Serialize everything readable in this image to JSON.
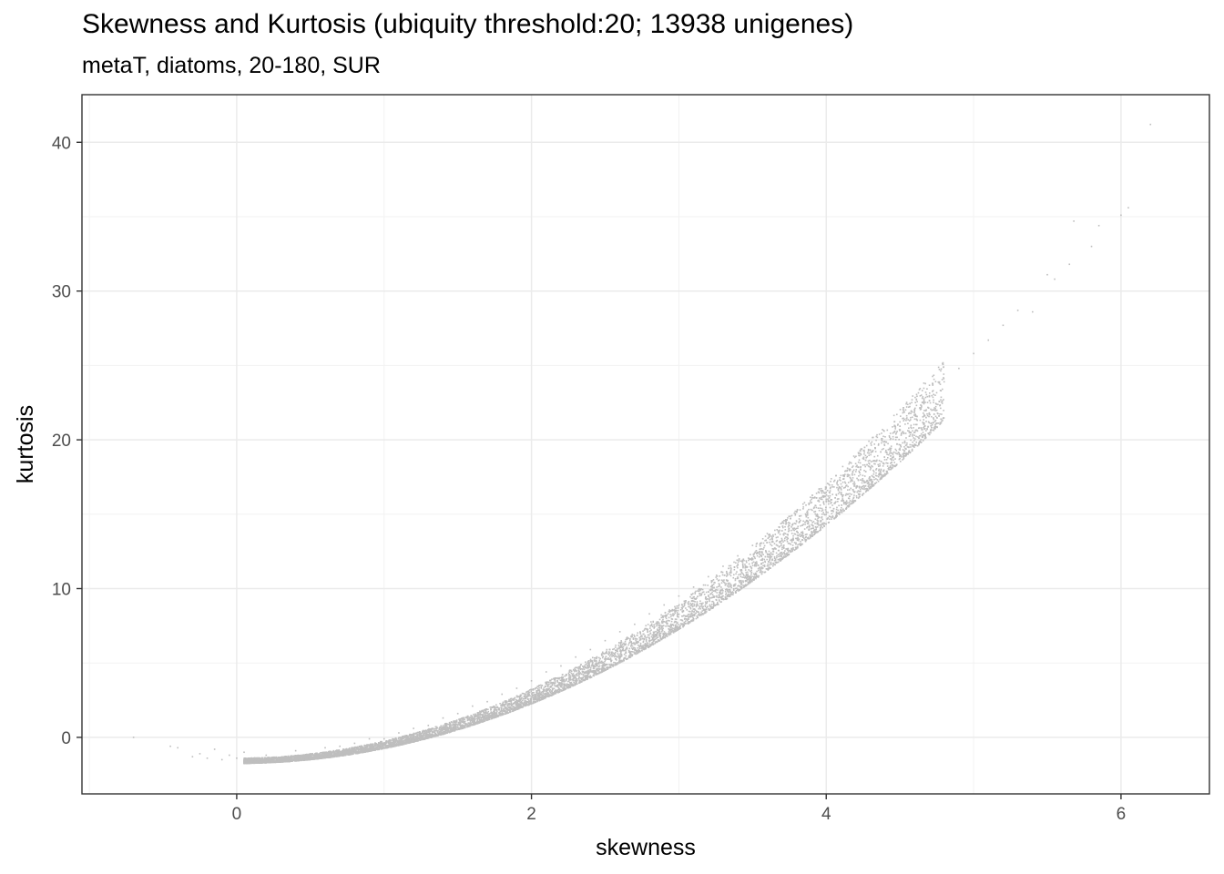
{
  "chart_data": {
    "type": "scatter",
    "title": "Skewness and Kurtosis (ubiquity threshold:20; 13938 unigenes)",
    "subtitle": "metaT, diatoms, 20-180, SUR",
    "xlabel": "skewness",
    "ylabel": "kurtosis",
    "xlim": [
      -1.05,
      6.6
    ],
    "ylim": [
      -3.8,
      43.2
    ],
    "x_ticks": [
      0,
      2,
      4,
      6
    ],
    "y_ticks": [
      0,
      10,
      20,
      30,
      40
    ],
    "x_tick_labels": [
      "0",
      "2",
      "4",
      "6"
    ],
    "y_tick_labels": [
      "0",
      "10",
      "20",
      "30",
      "40"
    ],
    "grid": true,
    "point_color": "#bebebe",
    "series": [
      {
        "points_description_count": 13938,
        "points": [
          [
            -0.7,
            0.0
          ],
          [
            -0.45,
            -0.6
          ],
          [
            -0.4,
            -0.7
          ],
          [
            -0.3,
            -1.3
          ],
          [
            -0.25,
            -1.1
          ],
          [
            -0.2,
            -1.4
          ],
          [
            -0.15,
            -0.8
          ],
          [
            -0.1,
            -1.5
          ],
          [
            -0.05,
            -1.2
          ],
          [
            0.0,
            -1.4
          ],
          [
            0.05,
            -1.0
          ],
          [
            0.1,
            -1.5
          ],
          [
            0.2,
            -1.2
          ],
          [
            0.3,
            -1.4
          ],
          [
            0.4,
            -0.9
          ],
          [
            0.5,
            -1.1
          ],
          [
            0.6,
            -0.7
          ],
          [
            0.7,
            -0.6
          ],
          [
            0.8,
            -0.4
          ],
          [
            0.9,
            -0.1
          ],
          [
            1.0,
            -0.1
          ],
          [
            1.1,
            0.3
          ],
          [
            1.2,
            0.6
          ],
          [
            1.3,
            0.8
          ],
          [
            1.4,
            1.3
          ],
          [
            1.5,
            1.6
          ],
          [
            1.6,
            2.1
          ],
          [
            1.7,
            2.4
          ],
          [
            1.8,
            2.9
          ],
          [
            1.9,
            3.3
          ],
          [
            2.0,
            3.8
          ],
          [
            2.1,
            4.4
          ],
          [
            2.2,
            4.8
          ],
          [
            2.3,
            5.4
          ],
          [
            2.4,
            5.9
          ],
          [
            2.5,
            6.5
          ],
          [
            2.6,
            7.1
          ],
          [
            2.7,
            7.6
          ],
          [
            2.8,
            8.3
          ],
          [
            2.9,
            8.9
          ],
          [
            3.0,
            9.5
          ],
          [
            3.1,
            10.1
          ],
          [
            3.2,
            10.8
          ],
          [
            3.3,
            11.5
          ],
          [
            3.4,
            12.2
          ],
          [
            3.5,
            12.9
          ],
          [
            3.6,
            13.7
          ],
          [
            3.7,
            14.4
          ],
          [
            3.8,
            15.2
          ],
          [
            3.9,
            16.0
          ],
          [
            4.0,
            16.8
          ],
          [
            4.1,
            17.6
          ],
          [
            4.2,
            18.4
          ],
          [
            4.3,
            19.3
          ],
          [
            4.4,
            20.2
          ],
          [
            4.5,
            21.2
          ],
          [
            4.6,
            22.0
          ],
          [
            4.7,
            22.9
          ],
          [
            4.8,
            23.9
          ],
          [
            4.9,
            24.8
          ],
          [
            5.0,
            25.8
          ],
          [
            5.1,
            26.7
          ],
          [
            5.2,
            27.7
          ],
          [
            5.3,
            28.7
          ],
          [
            5.4,
            28.6
          ],
          [
            5.5,
            31.1
          ],
          [
            5.55,
            30.8
          ],
          [
            5.65,
            31.8
          ],
          [
            5.68,
            34.7
          ],
          [
            5.8,
            33.0
          ],
          [
            5.85,
            34.4
          ],
          [
            6.0,
            35.1
          ],
          [
            6.05,
            35.6
          ],
          [
            6.2,
            41.2
          ]
        ]
      }
    ]
  }
}
